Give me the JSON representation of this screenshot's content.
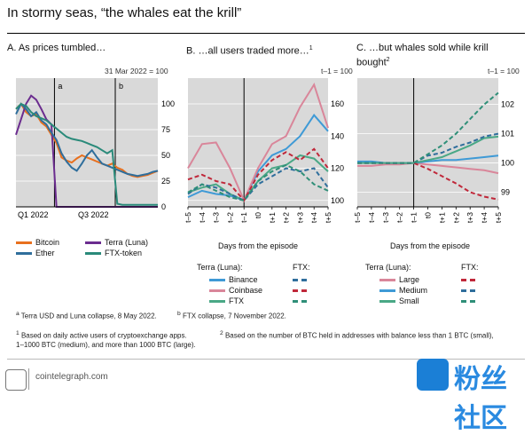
{
  "figure": {
    "title": "In stormy seas, “the whales eat the krill”",
    "footnotes": {
      "a": "Terra USD and Luna collapse, 8 May 2022.",
      "b": "FTX collapse, 7 November 2022.",
      "n1": "Based on daily active users of cryptoexchange apps.",
      "n2a": "Based on the number of BTC held in addresses with balance less than 1 BTC (small),",
      "n2b": "1–1000 BTC (medium), and more than 1000 BTC (large)."
    },
    "source": "cointelegraph.com",
    "watermark": "粉丝社区"
  },
  "panelA": {
    "title": "A. As prices tumbled…",
    "base": "31 Mar 2022 = 100",
    "markers": [
      "a",
      "b"
    ],
    "legend": [
      "Bitcoin",
      "Terra (Luna)",
      "Ether",
      "FTX-token"
    ]
  },
  "panelB": {
    "title": "B. …all users traded more…",
    "sup": "1",
    "base": "t–1 = 100",
    "xlabel": "Days from the episode",
    "legend_head_left": "Terra (Luna):",
    "legend_head_right": "FTX:",
    "legend": [
      "Binance",
      "Coinbase",
      "FTX"
    ]
  },
  "panelC": {
    "title": "C. …but whales sold while krill bought",
    "sup": "2",
    "base": "t–1 = 100",
    "xlabel": "Days from the episode",
    "legend_head_left": "Terra (Luna):",
    "legend_head_right": "FTX:",
    "legend": [
      "Large",
      "Medium",
      "Small"
    ]
  },
  "colors": {
    "bitcoin": "#e8701e",
    "luna": "#6b2c8f",
    "ether": "#2f6e9c",
    "ftt": "#2a8a7a",
    "red": "#c0283a",
    "pink": "#d9869a",
    "blue": "#3f9ad6",
    "green": "#4aa886",
    "teal": "#2f8f78",
    "shade": "#d9d9d9"
  },
  "chart_data": [
    {
      "type": "line",
      "title": "A. As prices tumbled…",
      "note": "31 Mar 2022 = 100",
      "x_ticks": [
        "Q1 2022",
        "Q3 2022"
      ],
      "ylim": [
        0,
        125
      ],
      "y_ticks": [
        0,
        25,
        50,
        75,
        100
      ],
      "events": [
        {
          "label": "a",
          "date": "8 May 2022"
        },
        {
          "label": "b",
          "date": "7 Nov 2022"
        }
      ],
      "series": [
        {
          "name": "Bitcoin",
          "values": [
            95,
            100,
            92,
            88,
            90,
            82,
            78,
            70,
            62,
            48,
            45,
            43,
            47,
            50,
            48,
            46,
            44,
            42,
            40,
            42,
            38,
            36,
            32,
            30,
            29,
            30,
            31,
            33,
            35
          ]
        },
        {
          "name": "Terra (Luna)",
          "values": [
            70,
            85,
            100,
            108,
            104,
            95,
            85,
            80,
            0,
            0,
            0,
            0,
            0,
            0,
            0,
            0,
            0,
            0,
            0,
            0,
            0,
            0,
            0,
            0,
            0,
            0,
            0,
            0,
            0
          ]
        },
        {
          "name": "Ether",
          "values": [
            90,
            100,
            95,
            88,
            92,
            84,
            80,
            72,
            65,
            52,
            44,
            38,
            35,
            42,
            50,
            55,
            48,
            42,
            40,
            38,
            36,
            34,
            32,
            31,
            30,
            31,
            32,
            34,
            35
          ]
        },
        {
          "name": "FTX-token",
          "values": [
            95,
            100,
            98,
            92,
            88,
            86,
            84,
            80,
            76,
            72,
            68,
            66,
            65,
            64,
            62,
            60,
            58,
            55,
            52,
            55,
            3,
            2,
            2,
            2,
            2,
            2,
            2,
            2,
            2
          ]
        }
      ]
    },
    {
      "type": "line",
      "title": "B. …all users traded more…",
      "note": "t–1 = 100",
      "x": [
        "t–5",
        "t–4",
        "t–3",
        "t–2",
        "t–1",
        "t0",
        "t+1",
        "t+2",
        "t+3",
        "t+4",
        "t+5"
      ],
      "ylim": [
        96,
        176
      ],
      "y_ticks": [
        100,
        120,
        140,
        160
      ],
      "series": [
        {
          "name": "Terra (Luna) Binance",
          "values": [
            102,
            106,
            104,
            103,
            100,
            118,
            128,
            132,
            140,
            153,
            143
          ]
        },
        {
          "name": "Terra (Luna) Coinbase",
          "values": [
            120,
            135,
            136,
            120,
            100,
            120,
            135,
            140,
            158,
            172,
            145
          ]
        },
        {
          "name": "Terra (Luna) FTX",
          "values": [
            105,
            108,
            110,
            104,
            100,
            112,
            120,
            122,
            128,
            126,
            118
          ]
        },
        {
          "name": "FTX Binance",
          "values": [
            104,
            110,
            108,
            104,
            100,
            110,
            115,
            120,
            118,
            120,
            108
          ]
        },
        {
          "name": "FTX Coinbase",
          "values": [
            113,
            116,
            112,
            110,
            100,
            116,
            125,
            130,
            125,
            132,
            120
          ]
        },
        {
          "name": "FTX FTX",
          "values": [
            105,
            110,
            106,
            102,
            100,
            112,
            118,
            122,
            118,
            110,
            106
          ]
        }
      ]
    },
    {
      "type": "line",
      "title": "C. …but whales sold while krill bought",
      "note": "t–1 = 100",
      "x": [
        "t–5",
        "t–4",
        "t–3",
        "t–2",
        "t–1",
        "t0",
        "t+1",
        "t+2",
        "t+3",
        "t+4",
        "t+5"
      ],
      "ylim": [
        98.5,
        102.9
      ],
      "y_ticks": [
        99,
        100,
        101,
        102
      ],
      "series": [
        {
          "name": "Terra (Luna) Large",
          "values": [
            99.9,
            99.9,
            99.95,
            99.95,
            100.0,
            99.95,
            99.9,
            99.85,
            99.8,
            99.75,
            99.65
          ]
        },
        {
          "name": "Terra (Luna) Medium",
          "values": [
            100.05,
            100.05,
            100.0,
            100.0,
            100.0,
            100.05,
            100.1,
            100.1,
            100.15,
            100.2,
            100.25
          ]
        },
        {
          "name": "Terra (Luna) Small",
          "values": [
            100.0,
            100.0,
            100.0,
            100.0,
            100.0,
            100.1,
            100.2,
            100.4,
            100.6,
            100.85,
            100.9
          ]
        },
        {
          "name": "FTX Large",
          "values": [
            100.0,
            100.0,
            100.0,
            100.0,
            100.0,
            99.8,
            99.55,
            99.3,
            99.0,
            98.85,
            98.75
          ]
        },
        {
          "name": "FTX Medium",
          "values": [
            100.0,
            100.0,
            100.0,
            100.0,
            100.0,
            100.25,
            100.35,
            100.55,
            100.7,
            100.9,
            101.0
          ]
        },
        {
          "name": "FTX Small",
          "values": [
            100.0,
            100.0,
            100.0,
            100.0,
            100.0,
            100.3,
            100.6,
            101.0,
            101.5,
            102.0,
            102.4
          ]
        }
      ]
    }
  ]
}
